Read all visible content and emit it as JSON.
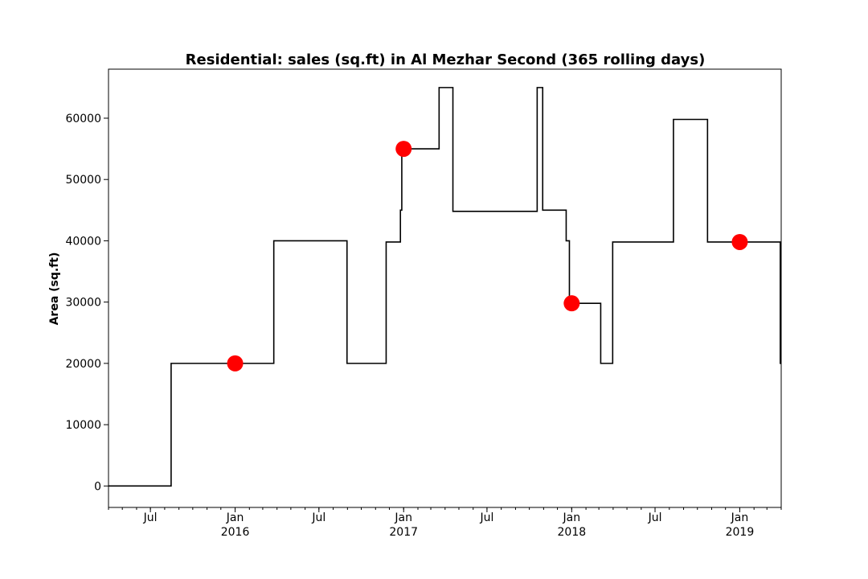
{
  "chart_data": {
    "type": "line",
    "title": "Residential: sales (sq.ft) in Al Mezhar Second (365 rolling days)",
    "xlabel": "",
    "ylabel": "Area (sq.ft)",
    "xlim": [
      "2015-04-01",
      "2019-04-01"
    ],
    "ylim": [
      -3500,
      68000
    ],
    "grid": false,
    "legend": "none",
    "y_ticks": [
      0,
      10000,
      20000,
      30000,
      40000,
      50000,
      60000
    ],
    "x_ticks": [
      {
        "date": "2015-07-01",
        "label": "Jul",
        "sublabel": ""
      },
      {
        "date": "2016-01-01",
        "label": "Jan",
        "sublabel": "2016"
      },
      {
        "date": "2016-07-01",
        "label": "Jul",
        "sublabel": ""
      },
      {
        "date": "2017-01-01",
        "label": "Jan",
        "sublabel": "2017"
      },
      {
        "date": "2017-07-01",
        "label": "Jul",
        "sublabel": ""
      },
      {
        "date": "2018-01-01",
        "label": "Jan",
        "sublabel": "2018"
      },
      {
        "date": "2018-07-01",
        "label": "Jul",
        "sublabel": ""
      },
      {
        "date": "2019-01-01",
        "label": "Jan",
        "sublabel": "2019"
      }
    ],
    "series": [
      {
        "color": "#000000",
        "step": "post",
        "points": [
          {
            "x": "2015-04-01",
            "y": 0
          },
          {
            "x": "2015-08-15",
            "y": 20000
          },
          {
            "x": "2016-03-25",
            "y": 40000
          },
          {
            "x": "2016-08-31",
            "y": 20000
          },
          {
            "x": "2016-11-24",
            "y": 39800
          },
          {
            "x": "2016-12-25",
            "y": 45000
          },
          {
            "x": "2016-12-28",
            "y": 55000
          },
          {
            "x": "2017-03-19",
            "y": 65000
          },
          {
            "x": "2017-04-18",
            "y": 44800
          },
          {
            "x": "2017-10-18",
            "y": 65000
          },
          {
            "x": "2017-10-30",
            "y": 45000
          },
          {
            "x": "2017-12-20",
            "y": 40000
          },
          {
            "x": "2017-12-27",
            "y": 29800
          },
          {
            "x": "2018-03-05",
            "y": 20000
          },
          {
            "x": "2018-03-31",
            "y": 39800
          },
          {
            "x": "2018-08-10",
            "y": 59800
          },
          {
            "x": "2018-10-23",
            "y": 39800
          },
          {
            "x": "2019-03-30",
            "y": 20000
          },
          {
            "x": "2019-04-01",
            "y": 20000
          }
        ]
      },
      {
        "type": "scatter",
        "color": "#ff0000",
        "points": [
          {
            "x": "2016-01-01",
            "y": 20000
          },
          {
            "x": "2017-01-01",
            "y": 55000
          },
          {
            "x": "2018-01-01",
            "y": 29800
          },
          {
            "x": "2019-01-01",
            "y": 39800
          }
        ]
      }
    ]
  }
}
